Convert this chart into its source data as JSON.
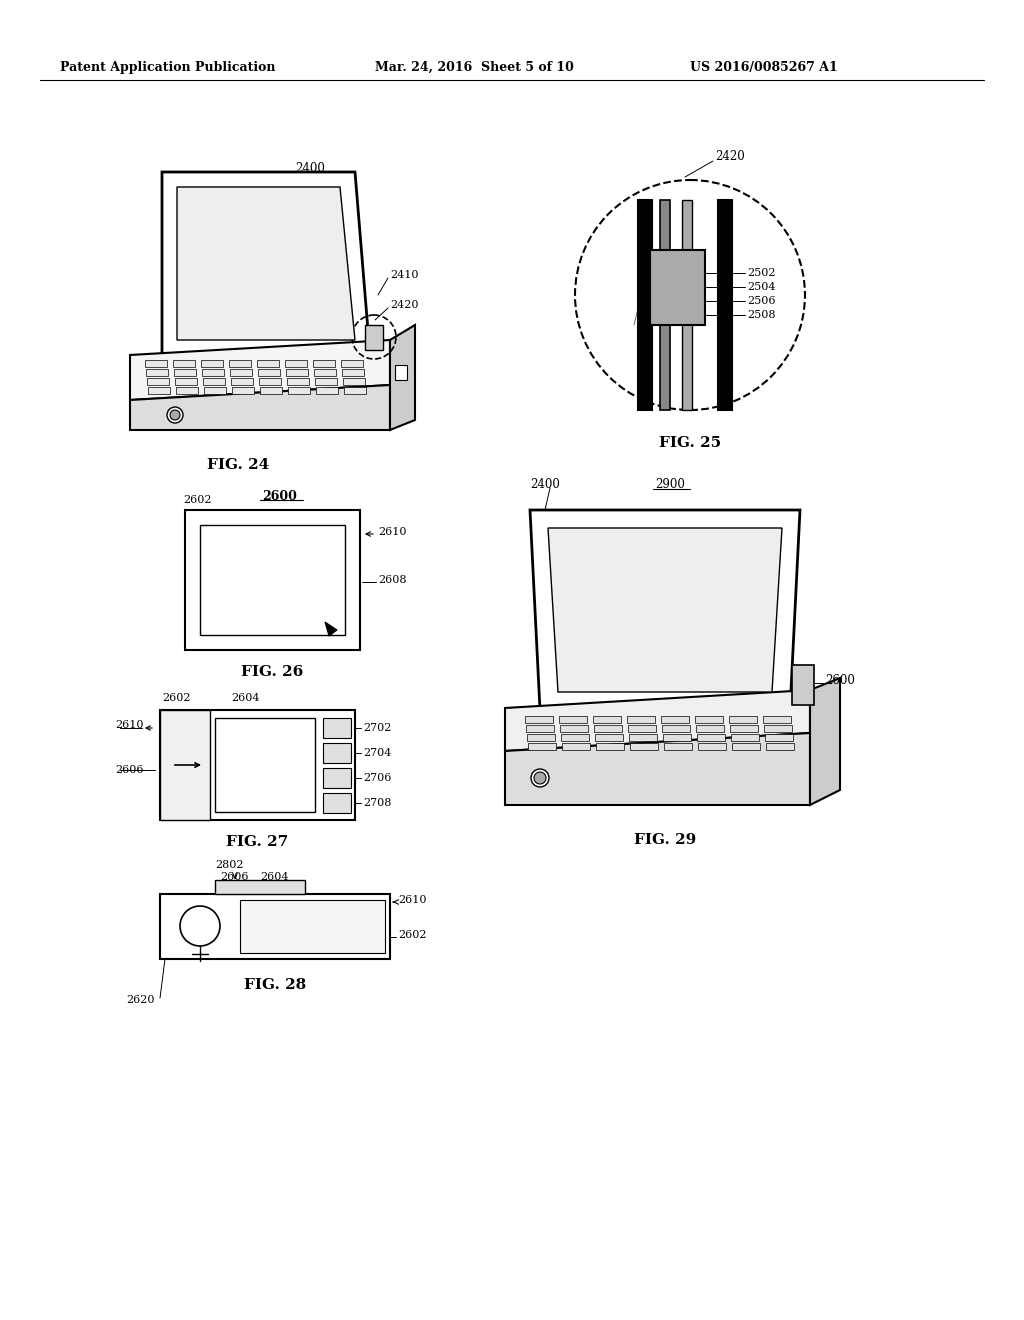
{
  "bg_color": "#ffffff",
  "header_left": "Patent Application Publication",
  "header_mid": "Mar. 24, 2016  Sheet 5 of 10",
  "header_right": "US 2016/0085267 A1",
  "fig24_label": "FIG. 24",
  "fig25_label": "FIG. 25",
  "fig26_label": "FIG. 26",
  "fig27_label": "FIG. 27",
  "fig28_label": "FIG. 28",
  "fig29_label": "FIG. 29",
  "fig24_refs": [
    "2400",
    "2410",
    "2420"
  ],
  "fig25_refs": [
    "2420",
    "2502",
    "2504",
    "2506",
    "2508"
  ],
  "fig26_refs": [
    "2602",
    "2600",
    "2610",
    "2608"
  ],
  "fig27_refs": [
    "2602",
    "2604",
    "2610",
    "2606",
    "2702",
    "2704",
    "2706",
    "2708"
  ],
  "fig28_refs": [
    "2802",
    "2606",
    "2604",
    "2610",
    "2602",
    "2620"
  ],
  "fig29_refs": [
    "2400",
    "2900",
    "2600"
  ]
}
